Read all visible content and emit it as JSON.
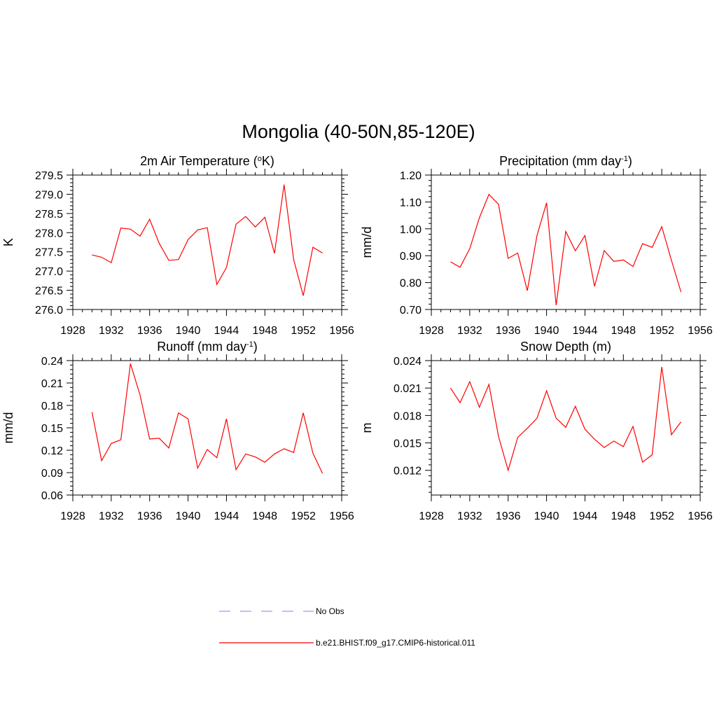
{
  "figure": {
    "title": "Mongolia (40-50N,85-120E)"
  },
  "legend": {
    "items": [
      {
        "label": "No Obs",
        "color": "#9999ff",
        "dash": true
      },
      {
        "label": "b.e21.BHIST.f09_g17.CMIP6-historical.011",
        "color": "#ff0000",
        "dash": false
      }
    ]
  },
  "chart_data": [
    {
      "type": "line",
      "title": "2m Air Temperature (",
      "title_sup": "o",
      "title_after": "K)",
      "title_sup2": "",
      "title_end": "",
      "ylabel": "K",
      "xlim": [
        1928,
        1956
      ],
      "ylim": [
        276.0,
        279.5
      ],
      "xticks": [
        1928,
        1932,
        1936,
        1940,
        1944,
        1948,
        1952,
        1956
      ],
      "yticks": [
        276.0,
        276.5,
        277.0,
        277.5,
        278.0,
        278.5,
        279.0,
        279.5
      ],
      "ytick_labels": [
        "276.0",
        "276.5",
        "277.0",
        "277.5",
        "278.0",
        "278.5",
        "279.0",
        "279.5"
      ],
      "color": "#ff0000",
      "x": [
        1930,
        1931,
        1932,
        1933,
        1934,
        1935,
        1936,
        1937,
        1938,
        1939,
        1940,
        1941,
        1942,
        1943,
        1944,
        1945,
        1946,
        1947,
        1948,
        1949,
        1950,
        1951,
        1952,
        1953,
        1954
      ],
      "y": [
        277.42,
        277.36,
        277.22,
        278.12,
        278.09,
        277.91,
        278.35,
        277.72,
        277.28,
        277.3,
        277.82,
        278.07,
        278.13,
        276.65,
        277.09,
        278.22,
        278.42,
        278.15,
        278.4,
        277.46,
        279.25,
        277.3,
        276.36,
        277.62,
        277.47
      ]
    },
    {
      "type": "line",
      "title": "Precipitation (mm day",
      "title_sup": "-1",
      "title_after": ")",
      "title_sup2": "",
      "title_end": "",
      "ylabel": "mm/d",
      "xlim": [
        1928,
        1956
      ],
      "ylim": [
        0.7,
        1.2
      ],
      "xticks": [
        1928,
        1932,
        1936,
        1940,
        1944,
        1948,
        1952,
        1956
      ],
      "yticks": [
        0.7,
        0.8,
        0.9,
        1.0,
        1.1,
        1.2
      ],
      "ytick_labels": [
        "0.70",
        "0.80",
        "0.90",
        "1.00",
        "1.10",
        "1.20"
      ],
      "color": "#ff0000",
      "x": [
        1930,
        1931,
        1932,
        1933,
        1934,
        1935,
        1936,
        1937,
        1938,
        1939,
        1940,
        1941,
        1942,
        1943,
        1944,
        1945,
        1946,
        1947,
        1948,
        1949,
        1950,
        1951,
        1952,
        1953,
        1954
      ],
      "y": [
        0.877,
        0.857,
        0.926,
        1.041,
        1.128,
        1.091,
        0.89,
        0.91,
        0.77,
        0.975,
        1.097,
        0.716,
        0.99,
        0.918,
        0.975,
        0.786,
        0.919,
        0.879,
        0.884,
        0.86,
        0.945,
        0.931,
        1.008,
        0.883,
        0.765
      ]
    },
    {
      "type": "line",
      "title": "Runoff (mm day",
      "title_sup": "-1",
      "title_after": ")",
      "title_sup2": "",
      "title_end": "",
      "ylabel": "mm/d",
      "xlim": [
        1928,
        1956
      ],
      "ylim": [
        0.06,
        0.24
      ],
      "xticks": [
        1928,
        1932,
        1936,
        1940,
        1944,
        1948,
        1952,
        1956
      ],
      "yticks": [
        0.06,
        0.09,
        0.12,
        0.15,
        0.18,
        0.21,
        0.24
      ],
      "ytick_labels": [
        "0.06",
        "0.09",
        "0.12",
        "0.15",
        "0.18",
        "0.21",
        "0.24"
      ],
      "color": "#ff0000",
      "x": [
        1930,
        1931,
        1932,
        1933,
        1934,
        1935,
        1936,
        1937,
        1938,
        1939,
        1940,
        1941,
        1942,
        1943,
        1944,
        1945,
        1946,
        1947,
        1948,
        1949,
        1950,
        1951,
        1952,
        1953,
        1954
      ],
      "y": [
        0.171,
        0.106,
        0.129,
        0.134,
        0.236,
        0.194,
        0.135,
        0.136,
        0.123,
        0.17,
        0.162,
        0.096,
        0.121,
        0.11,
        0.162,
        0.094,
        0.115,
        0.111,
        0.104,
        0.115,
        0.122,
        0.117,
        0.17,
        0.116,
        0.089
      ]
    },
    {
      "type": "line",
      "title": "Snow Depth (m)",
      "title_sup": "",
      "title_after": "",
      "title_sup2": "",
      "title_end": "",
      "ylabel": "m",
      "xlim": [
        1928,
        1956
      ],
      "ylim": [
        0.0093,
        0.024
      ],
      "xticks": [
        1928,
        1932,
        1936,
        1940,
        1944,
        1948,
        1952,
        1956
      ],
      "yticks": [
        0.012,
        0.015,
        0.018,
        0.021,
        0.024
      ],
      "ytick_labels": [
        "0.012",
        "0.015",
        "0.018",
        "0.021",
        "0.024"
      ],
      "color": "#ff0000",
      "x": [
        1930,
        1931,
        1932,
        1933,
        1934,
        1935,
        1936,
        1937,
        1938,
        1939,
        1940,
        1941,
        1942,
        1943,
        1944,
        1945,
        1946,
        1947,
        1948,
        1949,
        1950,
        1951,
        1952,
        1953,
        1954
      ],
      "y": [
        0.021,
        0.0194,
        0.0217,
        0.0189,
        0.0214,
        0.0157,
        0.012,
        0.0156,
        0.0166,
        0.0177,
        0.0207,
        0.0177,
        0.0167,
        0.019,
        0.0165,
        0.0154,
        0.0145,
        0.0152,
        0.0146,
        0.0168,
        0.0129,
        0.0137,
        0.0233,
        0.0159,
        0.0173
      ]
    }
  ]
}
